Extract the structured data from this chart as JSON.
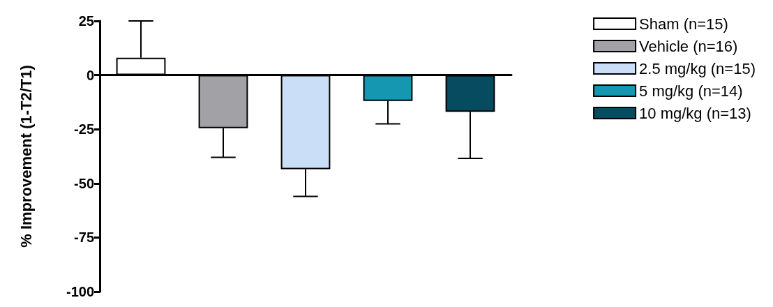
{
  "chart_data": {
    "type": "bar",
    "ylabel": "% Improvement (1-T2/T1)",
    "categories": [
      null,
      null,
      null,
      null,
      null
    ],
    "series": [
      {
        "name": "Sham (n=15)",
        "color": "#ffffff",
        "values": [
          8,
          null,
          null,
          null,
          null
        ],
        "errors": [
          17,
          null,
          null,
          null,
          null
        ]
      },
      {
        "name": "Vehicle (n=16)",
        "color": "#a2a1a6",
        "values": [
          null,
          -24.5,
          null,
          null,
          null
        ],
        "errors": [
          null,
          13.5,
          null,
          null,
          null
        ]
      },
      {
        "name": "2.5 mg/kg (n=15)",
        "color": "#cadff7",
        "values": [
          null,
          null,
          -43.5,
          null,
          null
        ],
        "errors": [
          null,
          null,
          12.5,
          null,
          null
        ]
      },
      {
        "name": "5 mg/kg (n=14)",
        "color": "#1597b2",
        "values": [
          null,
          null,
          null,
          -12,
          null
        ],
        "errors": [
          null,
          null,
          null,
          10.5,
          null
        ]
      },
      {
        "name": "10 mg/kg (n=13)",
        "color": "#064b5f",
        "values": [
          null,
          null,
          null,
          null,
          -17
        ],
        "errors": [
          null,
          null,
          null,
          null,
          21.5
        ]
      }
    ],
    "ylim": [
      -100,
      25
    ],
    "yticks": [
      -100,
      -75,
      -50,
      -25,
      0,
      25
    ],
    "legend": "right",
    "tick_labels": "y"
  }
}
